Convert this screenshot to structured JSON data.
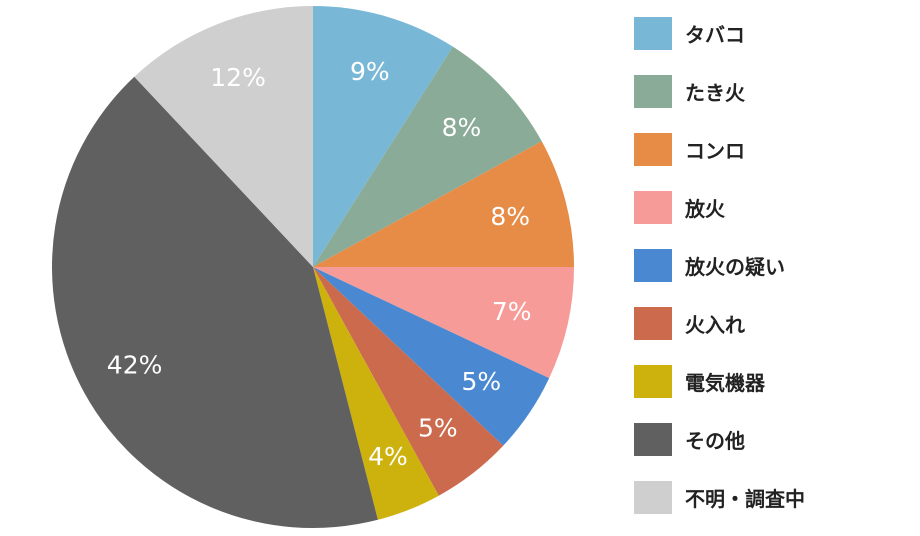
{
  "chart_data": {
    "type": "pie",
    "categories": [
      "タバコ",
      "たき火",
      "コンロ",
      "放火",
      "放火の疑い",
      "火入れ",
      "電気機器",
      "その他",
      "不明・調査中"
    ],
    "values": [
      9,
      8,
      8,
      7,
      5,
      5,
      4,
      42,
      12
    ],
    "labels": [
      "9%",
      "8%",
      "8%",
      "7%",
      "5%",
      "5%",
      "4%",
      "42%",
      "12%"
    ],
    "colors": [
      "#78b8d6",
      "#8aab97",
      "#e68c47",
      "#f79b99",
      "#4a89d1",
      "#cc6a4d",
      "#cdb20e",
      "#606060",
      "#cfcfcf"
    ],
    "legend_position": "right"
  }
}
